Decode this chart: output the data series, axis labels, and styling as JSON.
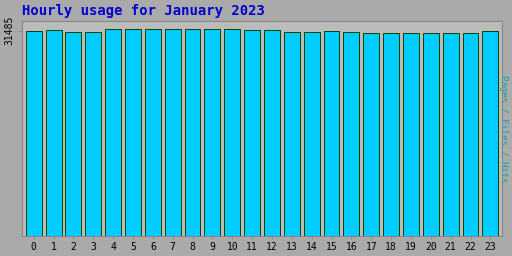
{
  "title": "Hourly usage for January 2023",
  "ylabel": "Pages / Files / Hits",
  "xlabel_values": [
    0,
    1,
    2,
    3,
    4,
    5,
    6,
    7,
    8,
    9,
    10,
    11,
    12,
    13,
    14,
    15,
    16,
    17,
    18,
    19,
    20,
    21,
    22,
    23
  ],
  "values": [
    31485,
    31520,
    31300,
    31250,
    31720,
    31760,
    31740,
    31710,
    31730,
    31740,
    31660,
    31610,
    31560,
    31200,
    31290,
    31390,
    31300,
    31180,
    31170,
    31160,
    31060,
    31070,
    31130,
    31390
  ],
  "bar_color": "#00CCFF",
  "bar_edge_color": "#004400",
  "bg_color": "#AAAAAA",
  "plot_bg_color": "#BBBBBB",
  "title_color": "#0000CC",
  "ylabel_color": "#00AAAA",
  "tick_color": "#000000",
  "ytick_label": "31485",
  "ytick_value": 31485,
  "ylim_min": 0,
  "ylim_max": 33000
}
